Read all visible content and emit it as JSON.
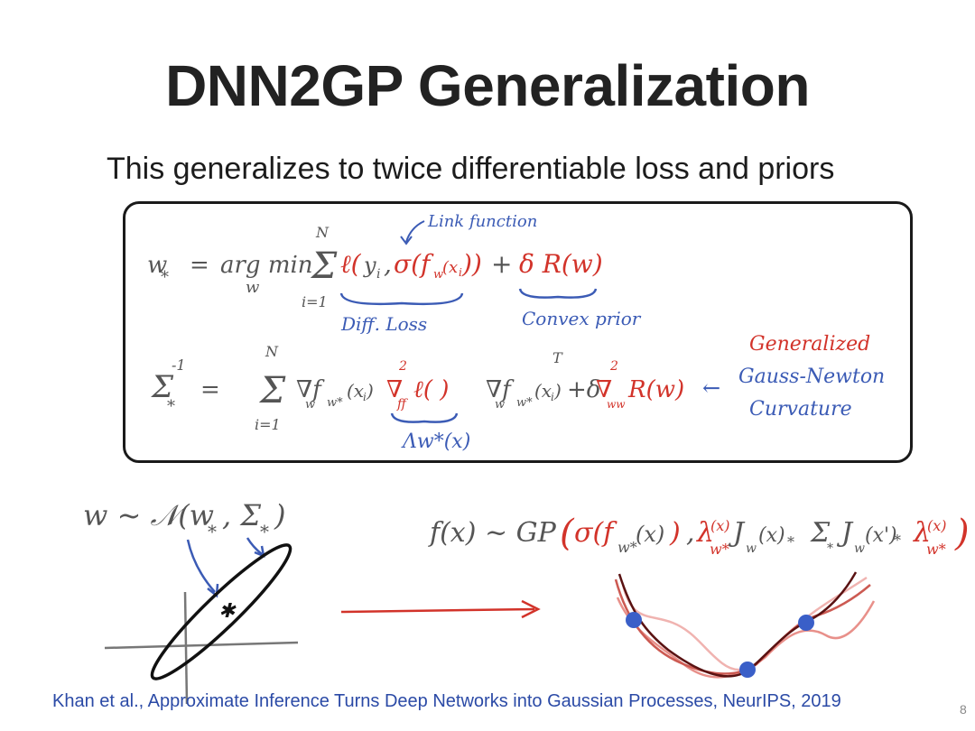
{
  "slide": {
    "title": "DNN2GP Generalization",
    "subtitle": "This generalizes to twice differentiable loss and priors",
    "citation": "Khan et al., Approximate Inference Turns Deep Networks into Gaussian Processes, NeurIPS, 2019",
    "page_number": "8"
  },
  "equations": {
    "link_function_note": "Link function",
    "diff_loss_label": "Diff. Loss",
    "convex_prior_label": "Convex prior",
    "generalized_label": "Generalized",
    "gauss_newton_label": "Gauss-Newton",
    "curvature_label": "Curvature",
    "lambda_label": "Λw*(x)"
  },
  "colors": {
    "ink": "#555555",
    "blue_ink": "#3b5bb5",
    "red_ink": "#d2332a",
    "dark_curve": "#5a1212",
    "dot": "#3a5fc8"
  }
}
